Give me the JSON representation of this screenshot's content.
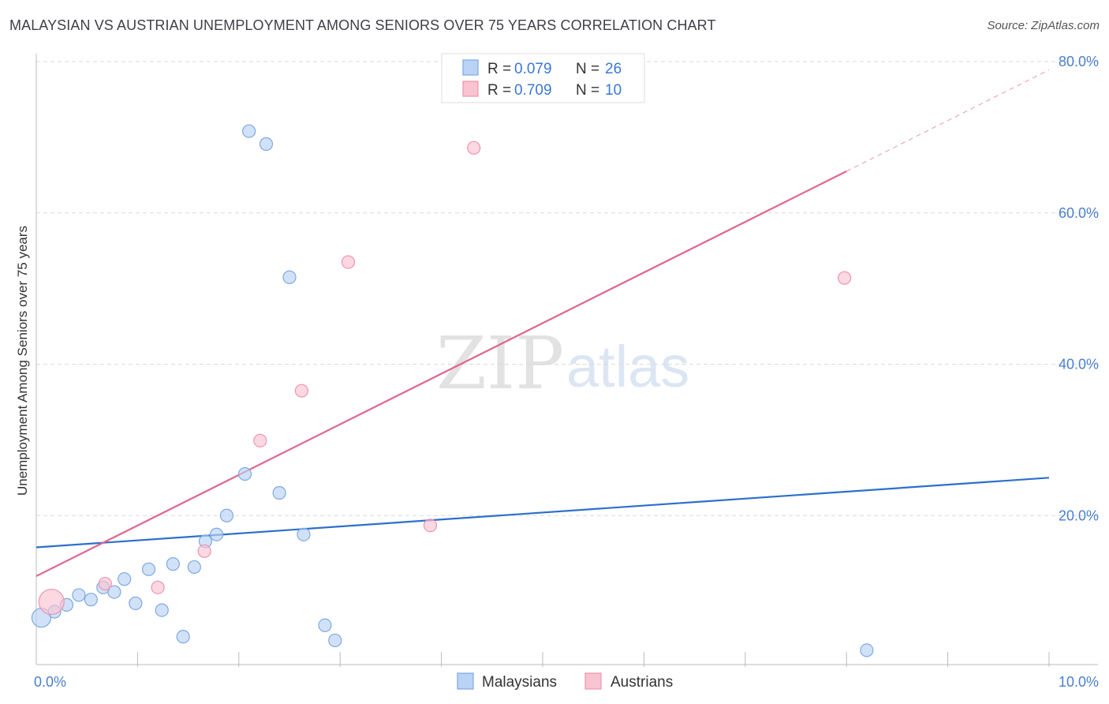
{
  "header": {
    "title": "MALAYSIAN VS AUSTRIAN UNEMPLOYMENT AMONG SENIORS OVER 75 YEARS CORRELATION CHART",
    "source": "Source: ZipAtlas.com"
  },
  "watermark": {
    "zip": "ZIP",
    "atlas": "atlas"
  },
  "colors": {
    "blue_fill": "#b8d3f5",
    "blue_stroke": "#7ea8e2",
    "blue_line": "#2d6fcc",
    "pink_fill": "#f9c3d2",
    "pink_stroke": "#ee94ae",
    "pink_line": "#e2648f",
    "grid": "#d9d9d9",
    "axis_label": "#4a7fcf"
  },
  "stats_legend": [
    {
      "series": "Malaysians",
      "r_label": "R = ",
      "r_value": "0.079",
      "n_label": "N = ",
      "n_value": "26"
    },
    {
      "series": "Austrians",
      "r_label": "R = ",
      "r_value": "0.709",
      "n_label": "N = ",
      "n_value": "10"
    }
  ],
  "chart_data": {
    "type": "scatter",
    "title": "MALAYSIAN VS AUSTRIAN UNEMPLOYMENT AMONG SENIORS OVER 75 YEARS CORRELATION CHART",
    "xlabel": "",
    "ylabel": "Unemployment Among Seniors over 75 years",
    "xlim": [
      0,
      10
    ],
    "ylim": [
      0,
      80
    ],
    "x_tick_labels": [
      {
        "value": 0,
        "label": "0.0%"
      },
      {
        "value": 10,
        "label": "10.0%"
      }
    ],
    "x_minor_ticks": [
      1,
      2,
      3,
      4,
      5,
      6,
      7,
      8,
      9,
      10
    ],
    "y_ticks": [
      {
        "value": 20,
        "label": "20.0%"
      },
      {
        "value": 40,
        "label": "40.0%"
      },
      {
        "value": 60,
        "label": "60.0%"
      },
      {
        "value": 80,
        "label": "80.0%"
      }
    ],
    "legend": [
      "Malaysians",
      "Austrians"
    ],
    "series": [
      {
        "name": "Malaysians",
        "color": "blue",
        "points": [
          {
            "x": 0.05,
            "y": 6.5,
            "size": 12
          },
          {
            "x": 0.18,
            "y": 7.3,
            "size": 8
          },
          {
            "x": 0.3,
            "y": 8.2,
            "size": 8
          },
          {
            "x": 0.42,
            "y": 9.5,
            "size": 8
          },
          {
            "x": 0.54,
            "y": 8.9,
            "size": 8
          },
          {
            "x": 0.66,
            "y": 10.5,
            "size": 8
          },
          {
            "x": 0.77,
            "y": 9.9,
            "size": 8
          },
          {
            "x": 0.87,
            "y": 11.6,
            "size": 8
          },
          {
            "x": 0.98,
            "y": 8.4,
            "size": 8
          },
          {
            "x": 1.11,
            "y": 12.9,
            "size": 8
          },
          {
            "x": 1.24,
            "y": 7.5,
            "size": 8
          },
          {
            "x": 1.35,
            "y": 13.6,
            "size": 8
          },
          {
            "x": 1.45,
            "y": 4.0,
            "size": 8
          },
          {
            "x": 1.56,
            "y": 13.2,
            "size": 8
          },
          {
            "x": 1.67,
            "y": 16.6,
            "size": 8
          },
          {
            "x": 1.78,
            "y": 17.5,
            "size": 8
          },
          {
            "x": 1.88,
            "y": 20.0,
            "size": 8
          },
          {
            "x": 2.06,
            "y": 25.5,
            "size": 8
          },
          {
            "x": 2.1,
            "y": 70.8,
            "size": 8
          },
          {
            "x": 2.27,
            "y": 69.1,
            "size": 8
          },
          {
            "x": 2.4,
            "y": 23.0,
            "size": 8
          },
          {
            "x": 2.5,
            "y": 51.5,
            "size": 8
          },
          {
            "x": 2.64,
            "y": 17.5,
            "size": 8
          },
          {
            "x": 2.85,
            "y": 5.5,
            "size": 8
          },
          {
            "x": 2.95,
            "y": 3.5,
            "size": 8
          },
          {
            "x": 8.2,
            "y": 2.2,
            "size": 8
          }
        ],
        "trend": {
          "x0": 0,
          "y0": 15.8,
          "x1": 10,
          "y1": 25.0
        }
      },
      {
        "name": "Austrians",
        "color": "pink",
        "points": [
          {
            "x": 0.15,
            "y": 8.6,
            "size": 16
          },
          {
            "x": 0.68,
            "y": 11.0,
            "size": 8
          },
          {
            "x": 1.2,
            "y": 10.5,
            "size": 8
          },
          {
            "x": 1.66,
            "y": 15.3,
            "size": 8
          },
          {
            "x": 2.21,
            "y": 29.9,
            "size": 8
          },
          {
            "x": 2.62,
            "y": 36.5,
            "size": 8
          },
          {
            "x": 3.08,
            "y": 53.5,
            "size": 8
          },
          {
            "x": 3.89,
            "y": 18.7,
            "size": 8
          },
          {
            "x": 4.32,
            "y": 68.6,
            "size": 8
          },
          {
            "x": 7.98,
            "y": 51.4,
            "size": 8
          }
        ],
        "trend": {
          "x0": 0,
          "y0": 12.0,
          "x1": 8.0,
          "y1": 65.5,
          "dash_x1": 10,
          "dash_y1": 78.9
        }
      }
    ]
  }
}
